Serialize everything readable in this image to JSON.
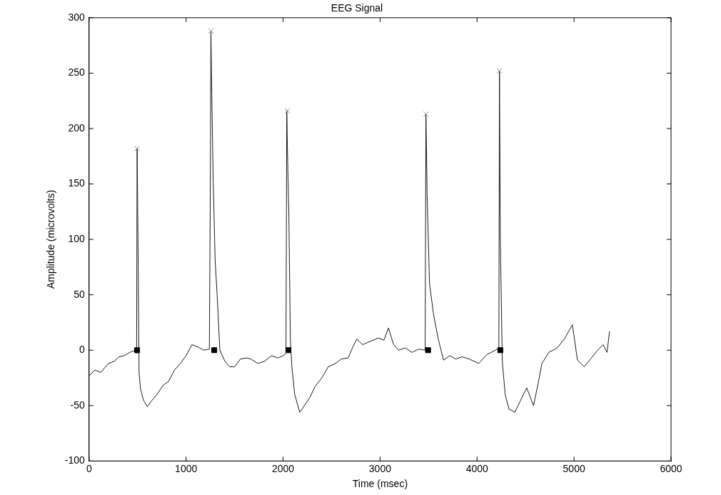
{
  "chart_data": {
    "type": "line",
    "title": "EEG Signal",
    "xlabel": "Time (msec)",
    "ylabel": "Amplitude (microvolts)",
    "xlim": [
      0,
      6000
    ],
    "xticks": [
      0,
      1000,
      2000,
      3000,
      4000,
      5000,
      6000
    ],
    "ylim": [
      -100,
      300
    ],
    "yticks": [
      -100,
      -50,
      0,
      50,
      100,
      150,
      200,
      250,
      300
    ],
    "grid": false,
    "legend": false,
    "line_style": "solid",
    "series": [
      {
        "type": "line",
        "marker": "none",
        "color": "#1a1a1a",
        "x": [
          0,
          60,
          120,
          200,
          260,
          307,
          360,
          420,
          480,
          490,
          495,
          505,
          515,
          530,
          560,
          600,
          650,
          700,
          760,
          820,
          880,
          940,
          1000,
          1060,
          1120,
          1180,
          1240,
          1250,
          1256,
          1265,
          1280,
          1300,
          1320,
          1348,
          1400,
          1450,
          1500,
          1560,
          1620,
          1670,
          1740,
          1810,
          1880,
          1950,
          2000,
          2030,
          2038,
          2045,
          2060,
          2075,
          2090,
          2120,
          2172,
          2220,
          2280,
          2328,
          2400,
          2465,
          2540,
          2600,
          2670,
          2720,
          2760,
          2820,
          2900,
          2983,
          3040,
          3086,
          3140,
          3190,
          3260,
          3330,
          3397,
          3465,
          3473,
          3485,
          3510,
          3552,
          3600,
          3655,
          3720,
          3780,
          3845,
          3920,
          4017,
          4100,
          4190,
          4225,
          4231,
          4240,
          4260,
          4290,
          4328,
          4390,
          4450,
          4512,
          4582,
          4630,
          4669,
          4740,
          4826,
          4900,
          4983,
          5035,
          5105,
          5170,
          5244,
          5300,
          5340,
          5366
        ],
        "values": [
          -23,
          -18,
          -20,
          -12,
          -10,
          -6,
          -5,
          -2,
          0,
          -3,
          182,
          90,
          -20,
          -35,
          -45,
          -51,
          -45,
          -40,
          -32,
          -28,
          -18,
          -12,
          -5,
          5,
          3,
          0,
          1,
          150,
          288,
          230,
          150,
          80,
          50,
          0,
          -10,
          -15,
          -15,
          -8,
          -7,
          -8,
          -12,
          -10,
          -5,
          -7,
          -5,
          -3,
          216,
          180,
          120,
          10,
          -15,
          -40,
          -56,
          -50,
          -42,
          -33,
          -25,
          -15,
          -12,
          -8,
          -7,
          3,
          10,
          5,
          8,
          11,
          9,
          20,
          5,
          0,
          2,
          -2,
          1,
          0,
          213,
          140,
          60,
          32,
          10,
          -9,
          -5,
          -8,
          -6,
          -8,
          -12,
          -4,
          0,
          2,
          252,
          100,
          -10,
          -40,
          -53,
          -56,
          -45,
          -34,
          -50,
          -30,
          -12,
          -2,
          2,
          10,
          23,
          -9,
          -15,
          -8,
          0,
          5,
          -2,
          17
        ]
      },
      {
        "type": "scatter",
        "marker": "cross",
        "color": "#8c8c8c",
        "x": [
          495,
          1256,
          2045,
          3473,
          4231
        ],
        "values": [
          182,
          288,
          216,
          213,
          252
        ]
      },
      {
        "type": "scatter",
        "marker": "square",
        "color": "#000000",
        "x": [
          495,
          1290,
          2055,
          3495,
          4240
        ],
        "values": [
          0,
          0,
          0,
          0,
          0
        ]
      }
    ]
  }
}
